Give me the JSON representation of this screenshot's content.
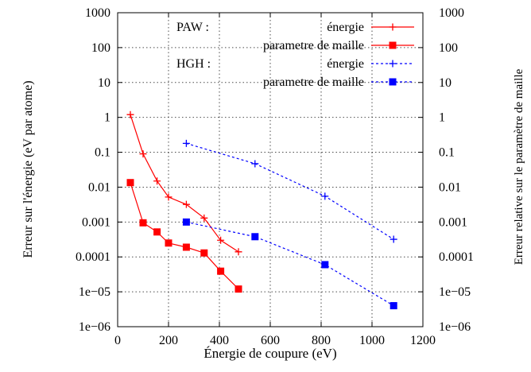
{
  "chart_data": {
    "type": "line",
    "title": "",
    "xlabel": "Énergie de coupure (eV)",
    "ylabel": "Erreur sur l'énergie (eV par atome)",
    "y2label": "Erreur relative sur le paramètre de maille",
    "xlim": [
      0,
      1200
    ],
    "ylim": [
      1e-06,
      1000
    ],
    "yscale": "log",
    "grid": true,
    "legend_position": "top-right",
    "x_ticks": [
      "0",
      "200",
      "400",
      "600",
      "800",
      "1000",
      "1200"
    ],
    "y_ticks": [
      "1e−06",
      "1e−05",
      "0.0001",
      "0.001",
      "0.01",
      "0.1",
      "1",
      "10",
      "100",
      "1000"
    ],
    "legend_groups": [
      {
        "label": "PAW :",
        "entries": [
          "énergie",
          "parametre de maille"
        ]
      },
      {
        "label": "HGH :",
        "entries": [
          "énergie",
          "parametre de maille"
        ]
      }
    ],
    "series": [
      {
        "color": "#ff0000",
        "marker": "plus",
        "dash": "solid",
        "x": [
          50,
          100,
          155,
          200,
          270,
          340,
          405,
          475
        ],
        "y": [
          1.2,
          0.09,
          0.015,
          0.0052,
          0.0032,
          0.0013,
          0.0003,
          0.00014
        ]
      },
      {
        "color": "#ff0000",
        "marker": "square",
        "dash": "solid",
        "x": [
          50,
          100,
          155,
          200,
          270,
          340,
          405,
          475
        ],
        "y": [
          0.0135,
          0.00095,
          0.00052,
          0.00025,
          0.00019,
          0.00013,
          3.9e-05,
          1.2e-05
        ]
      },
      {
        "color": "#0000ff",
        "marker": "plus",
        "dash": "dotted",
        "x": [
          270,
          540,
          815,
          1085
        ],
        "y": [
          0.18,
          0.047,
          0.0055,
          0.00032
        ]
      },
      {
        "color": "#0000ff",
        "marker": "square",
        "dash": "dotted",
        "x": [
          270,
          540,
          815,
          1085
        ],
        "y": [
          0.001,
          0.00038,
          6e-05,
          4e-06
        ]
      }
    ]
  }
}
